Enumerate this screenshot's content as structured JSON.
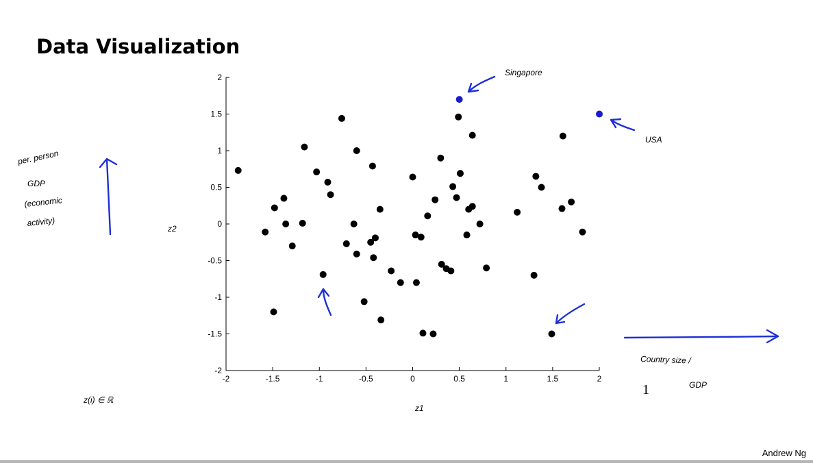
{
  "slide": {
    "title": "Data Visualization",
    "number": "1",
    "author": "Andrew Ng"
  },
  "chart_data": {
    "type": "scatter",
    "title": "",
    "xlabel": "z1",
    "ylabel": "z2",
    "xlim": [
      -2,
      2
    ],
    "ylim": [
      -2,
      2
    ],
    "xticks": [
      -2,
      -1.5,
      -1,
      -0.5,
      0,
      0.5,
      1,
      1.5,
      2
    ],
    "yticks": [
      -2,
      -1.5,
      -1,
      -0.5,
      0,
      0.5,
      1,
      1.5,
      2
    ],
    "xtick_labels": [
      "-2",
      "-1.5",
      "-1",
      "-0.5",
      "0",
      "0.5",
      "1",
      "1.5",
      "2"
    ],
    "ytick_labels": [
      "-2",
      "-1.5",
      "-1",
      "-0.5",
      "0",
      "0.5",
      "1",
      "1.5",
      "2"
    ],
    "grid": false,
    "point_color": "#000000",
    "highlight_color": "#1a1ad0",
    "points": [
      {
        "x": -1.87,
        "y": 0.73
      },
      {
        "x": -1.58,
        "y": -0.11
      },
      {
        "x": -1.48,
        "y": 0.22
      },
      {
        "x": -1.49,
        "y": -1.2
      },
      {
        "x": -1.38,
        "y": 0.35
      },
      {
        "x": -1.36,
        "y": 0.0
      },
      {
        "x": -1.29,
        "y": -0.3
      },
      {
        "x": -1.18,
        "y": 0.01
      },
      {
        "x": -1.16,
        "y": 1.05
      },
      {
        "x": -1.03,
        "y": 0.71
      },
      {
        "x": -0.96,
        "y": -0.69
      },
      {
        "x": -0.91,
        "y": 0.57
      },
      {
        "x": -0.88,
        "y": 0.4
      },
      {
        "x": -0.76,
        "y": 1.44
      },
      {
        "x": -0.71,
        "y": -0.27
      },
      {
        "x": -0.63,
        "y": 0.0
      },
      {
        "x": -0.6,
        "y": 1.0
      },
      {
        "x": -0.6,
        "y": -0.41
      },
      {
        "x": -0.52,
        "y": -1.06
      },
      {
        "x": -0.45,
        "y": -0.25
      },
      {
        "x": -0.43,
        "y": 0.79
      },
      {
        "x": -0.42,
        "y": -0.46
      },
      {
        "x": -0.4,
        "y": -0.19
      },
      {
        "x": -0.35,
        "y": 0.2
      },
      {
        "x": -0.34,
        "y": -1.31
      },
      {
        "x": -0.23,
        "y": -0.64
      },
      {
        "x": -0.13,
        "y": -0.8
      },
      {
        "x": 0.0,
        "y": 0.64
      },
      {
        "x": 0.03,
        "y": -0.15
      },
      {
        "x": 0.04,
        "y": -0.8
      },
      {
        "x": 0.09,
        "y": -0.18
      },
      {
        "x": 0.11,
        "y": -1.49
      },
      {
        "x": 0.16,
        "y": 0.11
      },
      {
        "x": 0.22,
        "y": -1.5
      },
      {
        "x": 0.24,
        "y": 0.33
      },
      {
        "x": 0.3,
        "y": 0.9
      },
      {
        "x": 0.31,
        "y": -0.55
      },
      {
        "x": 0.36,
        "y": -0.61
      },
      {
        "x": 0.41,
        "y": -0.64
      },
      {
        "x": 0.43,
        "y": 0.51
      },
      {
        "x": 0.47,
        "y": 0.36
      },
      {
        "x": 0.49,
        "y": 1.46
      },
      {
        "x": 0.51,
        "y": 0.69
      },
      {
        "x": 0.58,
        "y": -0.15
      },
      {
        "x": 0.6,
        "y": 0.2
      },
      {
        "x": 0.64,
        "y": 0.24
      },
      {
        "x": 0.64,
        "y": 1.21
      },
      {
        "x": 0.72,
        "y": 0.0
      },
      {
        "x": 0.79,
        "y": -0.6
      },
      {
        "x": 1.12,
        "y": 0.16
      },
      {
        "x": 1.3,
        "y": -0.7
      },
      {
        "x": 1.32,
        "y": 0.65
      },
      {
        "x": 1.38,
        "y": 0.5
      },
      {
        "x": 1.49,
        "y": -1.5
      },
      {
        "x": 1.6,
        "y": 0.21
      },
      {
        "x": 1.61,
        "y": 1.2
      },
      {
        "x": 1.7,
        "y": 0.3
      },
      {
        "x": 1.82,
        "y": -0.11
      },
      {
        "x": 0.5,
        "y": 1.7,
        "highlight": true
      },
      {
        "x": 2.0,
        "y": 1.5,
        "highlight": true
      }
    ]
  },
  "annotations": {
    "singapore": "Singapore",
    "usa": "USA",
    "y_axis_meaning": [
      "per. person",
      "GDP",
      "(economic",
      "activity)"
    ],
    "x_axis_meaning": [
      "Country size /",
      "GDP"
    ],
    "z_membership": "z(i) ∈ ℝ",
    "ink_color": "#1d2fd8"
  }
}
